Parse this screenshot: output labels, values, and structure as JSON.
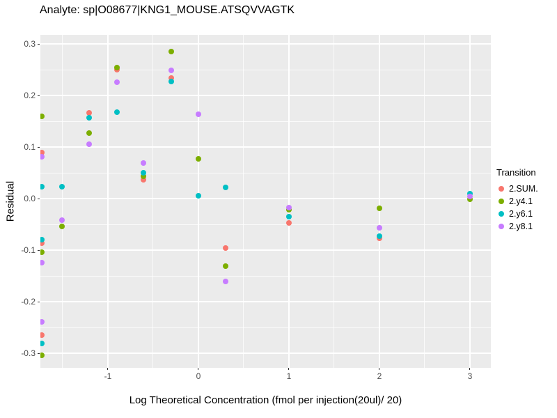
{
  "chart_data": {
    "type": "scatter",
    "title": "Analyte: sp|O08677|KNG1_MOUSE.ATSQVVAGTK",
    "legend_title": "Transition",
    "legend_position": "right",
    "grid": "on",
    "style": {
      "panel_bg": "#EBEBEB",
      "grid_color": "#FFFFFF",
      "tick_text_color": "#4D4D4D",
      "title_text_color": "#000000",
      "tick_mark_color": "#333333"
    },
    "axes": {
      "x": {
        "title": "Log Theoretical Concentration (fmol per injection(20ul)/ 20)",
        "range": [
          -1.746,
          3.231
        ],
        "major": [
          -1,
          0,
          1,
          2,
          3
        ],
        "major_labels": [
          "-1",
          "0",
          "1",
          "2",
          "3"
        ],
        "minor": [
          -1.5,
          -0.5,
          0.5,
          1.5,
          2.5
        ]
      },
      "y": {
        "title": "Residual",
        "range": [
          -0.328,
          0.318
        ],
        "major": [
          0.3,
          0.2,
          0.1,
          0,
          -0.1,
          -0.2,
          -0.3
        ],
        "major_labels": [
          "0.3",
          "0.2",
          "0.1",
          "0.0",
          "-0.1",
          "-0.2",
          "-0.3"
        ],
        "minor": [
          0.25,
          0.15,
          0.05,
          -0.05,
          -0.15,
          -0.25
        ]
      }
    },
    "series": [
      {
        "name": "2.SUM.",
        "color": "#F8766D",
        "points": [
          [
            -1.73,
            0.089
          ],
          [
            -1.73,
            -0.086
          ],
          [
            -1.73,
            -0.264
          ],
          [
            -1.21,
            0.166
          ],
          [
            -0.9,
            0.25
          ],
          [
            -0.61,
            0.037
          ],
          [
            -0.3,
            0.234
          ],
          [
            0.3,
            -0.095
          ],
          [
            1.0,
            -0.047
          ],
          [
            2.0,
            -0.077
          ]
        ]
      },
      {
        "name": "2.y4.1",
        "color": "#7CAE00",
        "points": [
          [
            -1.73,
            0.16
          ],
          [
            -1.73,
            -0.104
          ],
          [
            -1.73,
            -0.303
          ],
          [
            -1.51,
            -0.053
          ],
          [
            -1.21,
            0.128
          ],
          [
            -0.9,
            0.254
          ],
          [
            -0.61,
            0.044
          ],
          [
            -0.3,
            0.286
          ],
          [
            0.0,
            0.078
          ],
          [
            0.3,
            -0.131
          ],
          [
            1.0,
            -0.021
          ],
          [
            2.0,
            -0.019
          ],
          [
            3.0,
            -0.001
          ]
        ]
      },
      {
        "name": "2.y6.1",
        "color": "#00BFC4",
        "points": [
          [
            -1.73,
            0.024
          ],
          [
            -1.73,
            -0.08
          ],
          [
            -1.73,
            -0.281
          ],
          [
            -1.51,
            0.023
          ],
          [
            -1.21,
            0.157
          ],
          [
            -0.9,
            0.168
          ],
          [
            -0.61,
            0.05
          ],
          [
            -0.3,
            0.228
          ],
          [
            0.0,
            0.006
          ],
          [
            0.3,
            0.022
          ],
          [
            1.0,
            -0.035
          ],
          [
            2.0,
            -0.073
          ],
          [
            3.0,
            0.01
          ]
        ]
      },
      {
        "name": "2.y8.1",
        "color": "#C77CFF",
        "points": [
          [
            -1.73,
            0.081
          ],
          [
            -1.73,
            -0.124
          ],
          [
            -1.73,
            -0.239
          ],
          [
            -1.51,
            -0.041
          ],
          [
            -1.21,
            0.106
          ],
          [
            -0.9,
            0.226
          ],
          [
            -0.61,
            0.069
          ],
          [
            -0.3,
            0.249
          ],
          [
            0.0,
            0.164
          ],
          [
            0.3,
            -0.161
          ],
          [
            1.0,
            -0.017
          ],
          [
            2.0,
            -0.057
          ],
          [
            3.0,
            0.004
          ]
        ]
      }
    ]
  }
}
